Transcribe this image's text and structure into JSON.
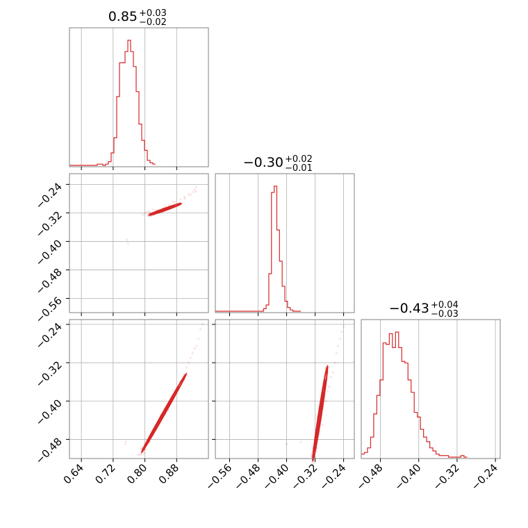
{
  "colors": {
    "accent": "#d62728",
    "grid": "#b0b0b0",
    "frame": "#7f7f7f"
  },
  "chart_data": {
    "type": "corner",
    "grid": true,
    "parameters": [
      {
        "title_value": "0.85",
        "title_plus": "+0.03",
        "title_minus": "−0.02",
        "range": [
          0.61,
          0.96
        ],
        "ticks": [
          0.64,
          0.72,
          0.8,
          0.88
        ],
        "tick_labels": [
          "0.64",
          "0.72",
          "0.80",
          "0.88"
        ],
        "histogram": {
          "bin_start": 0.61,
          "bin_width": 0.007,
          "counts": [
            0,
            0,
            0,
            0,
            0,
            0,
            0,
            0,
            0,
            0,
            1,
            1,
            0,
            1,
            3,
            10,
            22,
            55,
            82,
            82,
            91,
            100,
            91,
            79,
            59,
            33,
            20,
            12,
            4,
            2,
            1
          ]
        }
      },
      {
        "title_value": "−0.30",
        "title_plus": "+0.02",
        "title_minus": "−0.01",
        "range": [
          -0.6,
          -0.21
        ],
        "ticks": [
          -0.56,
          -0.48,
          -0.4,
          -0.32,
          -0.24
        ],
        "tick_labels": [
          "−0.56",
          "−0.48",
          "−0.40",
          "−0.32",
          "−0.24"
        ],
        "histogram": {
          "bin_start": -0.6,
          "bin_width": 0.0075,
          "counts": [
            0,
            0,
            0,
            0,
            0,
            0,
            0,
            0,
            0,
            0,
            0,
            0,
            0,
            0,
            0,
            0,
            0,
            0,
            2,
            5,
            30,
            95,
            100,
            65,
            40,
            20,
            8,
            3,
            1,
            0,
            0,
            0
          ]
        }
      },
      {
        "title_value": "−0.43",
        "title_plus": "+0.04",
        "title_minus": "−0.03",
        "range": [
          -0.52,
          -0.23
        ],
        "ticks": [
          -0.48,
          -0.4,
          -0.32,
          -0.24
        ],
        "tick_labels": [
          "−0.48",
          "−0.40",
          "−0.32",
          "−0.24"
        ],
        "histogram": {
          "bin_start": -0.52,
          "bin_width": 0.0065,
          "counts": [
            2,
            3,
            6,
            13,
            28,
            40,
            50,
            74,
            73,
            80,
            71,
            81,
            71,
            62,
            61,
            50,
            42,
            29,
            26,
            18,
            13,
            10,
            6,
            4,
            2,
            1,
            1,
            1,
            0,
            0,
            0,
            0,
            1,
            0
          ]
        }
      }
    ],
    "pairs": [
      {
        "x_param": 0,
        "y_param": 1,
        "contours": [
          {
            "center": [
              0.851,
              -0.31
            ],
            "a": 0.043,
            "b": 0.003,
            "slope": 0.4
          },
          {
            "center": [
              0.846,
              -0.312
            ],
            "a": 0.03,
            "b": 0.0022,
            "slope": 0.4
          },
          {
            "center": [
              0.842,
              -0.313
            ],
            "a": 0.019,
            "b": 0.0015,
            "slope": 0.4
          }
        ],
        "points": [
          [
            0.81,
            -0.315
          ],
          [
            0.805,
            -0.318
          ],
          [
            0.812,
            -0.322
          ],
          [
            0.83,
            -0.312
          ],
          [
            0.86,
            -0.298
          ],
          [
            0.875,
            -0.29
          ],
          [
            0.89,
            -0.283
          ],
          [
            0.9,
            -0.275
          ],
          [
            0.91,
            -0.268
          ],
          [
            0.92,
            -0.262
          ],
          [
            0.925,
            -0.255
          ],
          [
            0.93,
            -0.248
          ],
          [
            0.8,
            -0.322
          ],
          [
            0.795,
            -0.325
          ],
          [
            0.82,
            -0.31
          ],
          [
            0.85,
            -0.3
          ],
          [
            0.87,
            -0.288
          ],
          [
            0.9,
            -0.28
          ],
          [
            0.915,
            -0.27
          ],
          [
            0.928,
            -0.26
          ],
          [
            0.757,
            -0.405
          ],
          [
            0.755,
            -0.395
          ]
        ]
      },
      {
        "x_param": 0,
        "y_param": 2,
        "contours": [
          {
            "center": [
              0.848,
              -0.425
            ],
            "a": 0.098,
            "b": 0.0028,
            "slope": 1.46
          },
          {
            "center": [
              0.845,
              -0.43
            ],
            "a": 0.07,
            "b": 0.002,
            "slope": 1.46
          },
          {
            "center": [
              0.843,
              -0.433
            ],
            "a": 0.045,
            "b": 0.0014,
            "slope": 1.46
          }
        ],
        "points": [
          [
            0.79,
            -0.5
          ],
          [
            0.8,
            -0.49
          ],
          [
            0.805,
            -0.485
          ],
          [
            0.81,
            -0.475
          ],
          [
            0.82,
            -0.47
          ],
          [
            0.88,
            -0.375
          ],
          [
            0.89,
            -0.36
          ],
          [
            0.9,
            -0.345
          ],
          [
            0.905,
            -0.33
          ],
          [
            0.915,
            -0.31
          ],
          [
            0.925,
            -0.29
          ],
          [
            0.935,
            -0.27
          ],
          [
            0.94,
            -0.25
          ],
          [
            0.945,
            -0.24
          ],
          [
            0.752,
            -0.485
          ],
          [
            0.75,
            -0.49
          ],
          [
            0.798,
            -0.508
          ],
          [
            0.782,
            -0.512
          ],
          [
            0.86,
            -0.42
          ],
          [
            0.91,
            -0.32
          ],
          [
            0.92,
            -0.3
          ],
          [
            0.93,
            -0.285
          ]
        ]
      },
      {
        "x_param": 1,
        "y_param": 2,
        "contours": [
          {
            "center": [
              -0.306,
              -0.426
            ],
            "a": 0.1,
            "b": 0.004,
            "slope": 4.8
          },
          {
            "center": [
              -0.307,
              -0.43
            ],
            "a": 0.075,
            "b": 0.003,
            "slope": 4.8
          },
          {
            "center": [
              -0.308,
              -0.432
            ],
            "a": 0.05,
            "b": 0.002,
            "slope": 4.8
          }
        ],
        "points": [
          [
            -0.32,
            -0.49
          ],
          [
            -0.325,
            -0.5
          ],
          [
            -0.318,
            -0.485
          ],
          [
            -0.31,
            -0.47
          ],
          [
            -0.3,
            -0.45
          ],
          [
            -0.29,
            -0.4
          ],
          [
            -0.28,
            -0.37
          ],
          [
            -0.27,
            -0.34
          ],
          [
            -0.265,
            -0.32
          ],
          [
            -0.26,
            -0.3
          ],
          [
            -0.255,
            -0.285
          ],
          [
            -0.25,
            -0.27
          ],
          [
            -0.245,
            -0.255
          ],
          [
            -0.24,
            -0.245
          ],
          [
            -0.36,
            -0.485
          ],
          [
            -0.4,
            -0.49
          ],
          [
            -0.33,
            -0.51
          ],
          [
            -0.315,
            -0.505
          ],
          [
            -0.285,
            -0.38
          ],
          [
            -0.275,
            -0.35
          ]
        ]
      }
    ]
  }
}
